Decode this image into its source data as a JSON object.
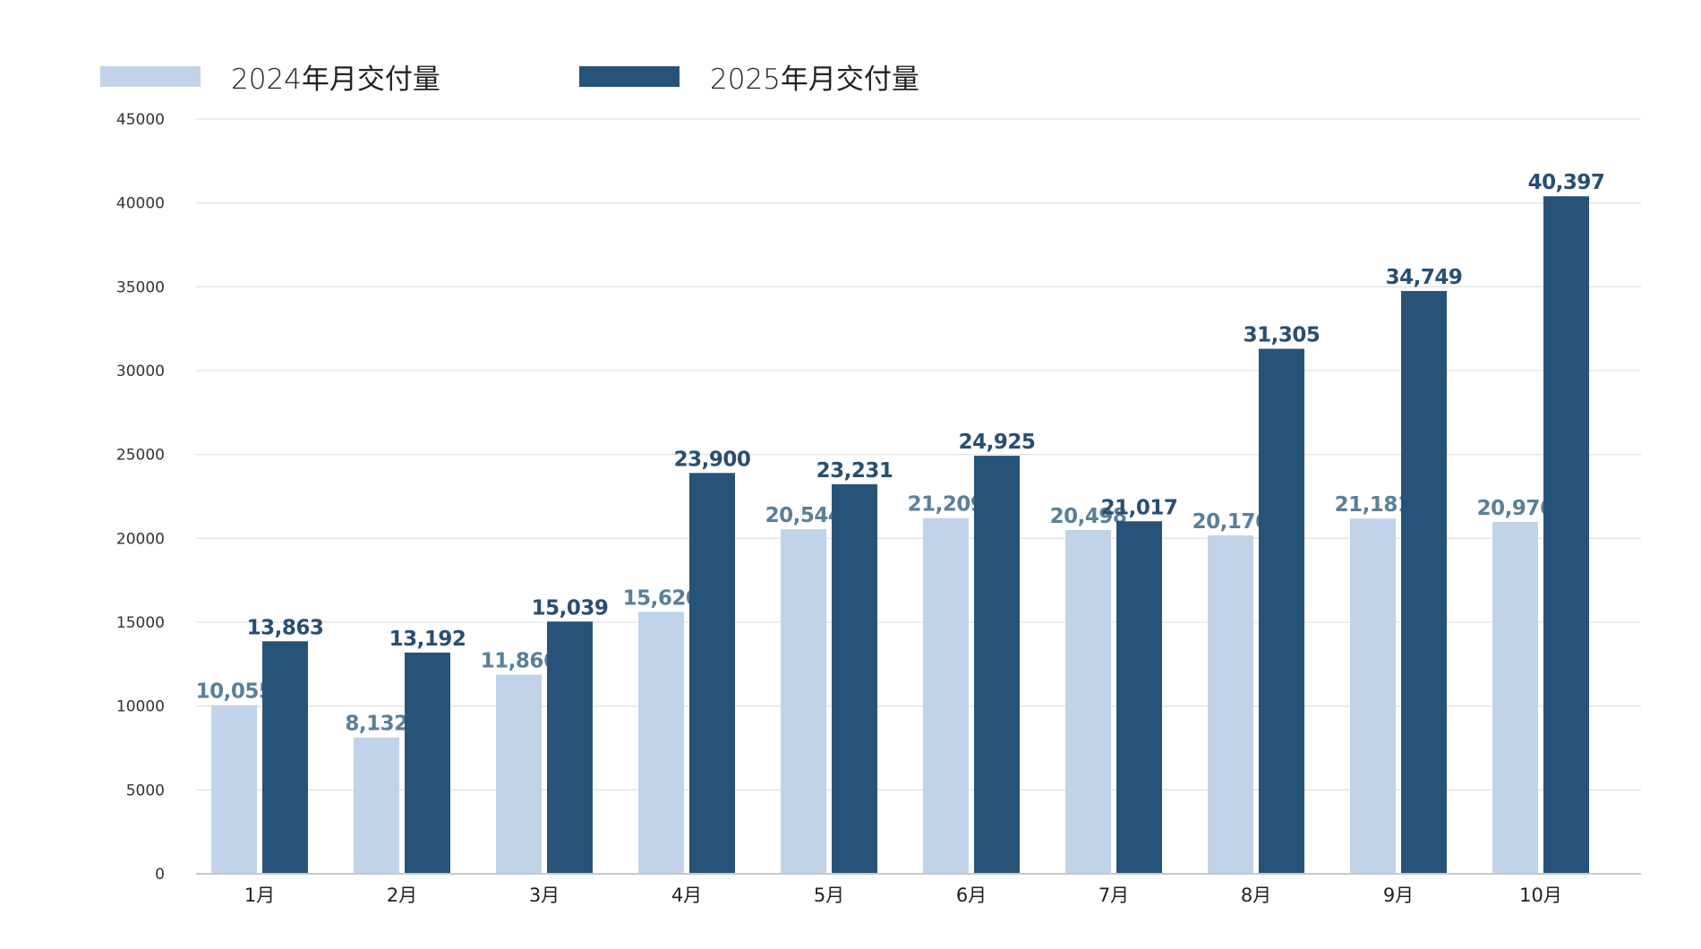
{
  "colors": {
    "series_2024": "#c1d3e8",
    "series_2025": "#285378",
    "label_2024": "#5b7f98",
    "label_2025": "#284e72",
    "grid": "#e3e3e3",
    "axis": "#c8c8c8"
  },
  "chart_data": {
    "type": "bar",
    "categories": [
      "1月",
      "2月",
      "3月",
      "4月",
      "5月",
      "6月",
      "7月",
      "8月",
      "9月",
      "10月"
    ],
    "series": [
      {
        "name": "2024年月交付量",
        "values": [
          10055,
          8132,
          11866,
          15620,
          20544,
          21209,
          20498,
          20176,
          21181,
          20976
        ],
        "labels": [
          "10,055",
          "8,132",
          "11,866",
          "15,620",
          "20,544",
          "21,209",
          "20,498",
          "20,176",
          "21,181",
          "20,976"
        ]
      },
      {
        "name": "2025年月交付量",
        "values": [
          13863,
          13192,
          15039,
          23900,
          23231,
          24925,
          21017,
          31305,
          34749,
          40397
        ],
        "labels": [
          "13,863",
          "13,192",
          "15,039",
          "23,900",
          "23,231",
          "24,925",
          "21,017",
          "31,305",
          "34,749",
          "40,397"
        ]
      }
    ],
    "ylim": [
      0,
      45000
    ],
    "yticks": [
      "0",
      "5000",
      "10000",
      "15000",
      "20000",
      "25000",
      "30000",
      "35000",
      "40000",
      "45000"
    ],
    "grid": true,
    "legend": "top-left"
  }
}
